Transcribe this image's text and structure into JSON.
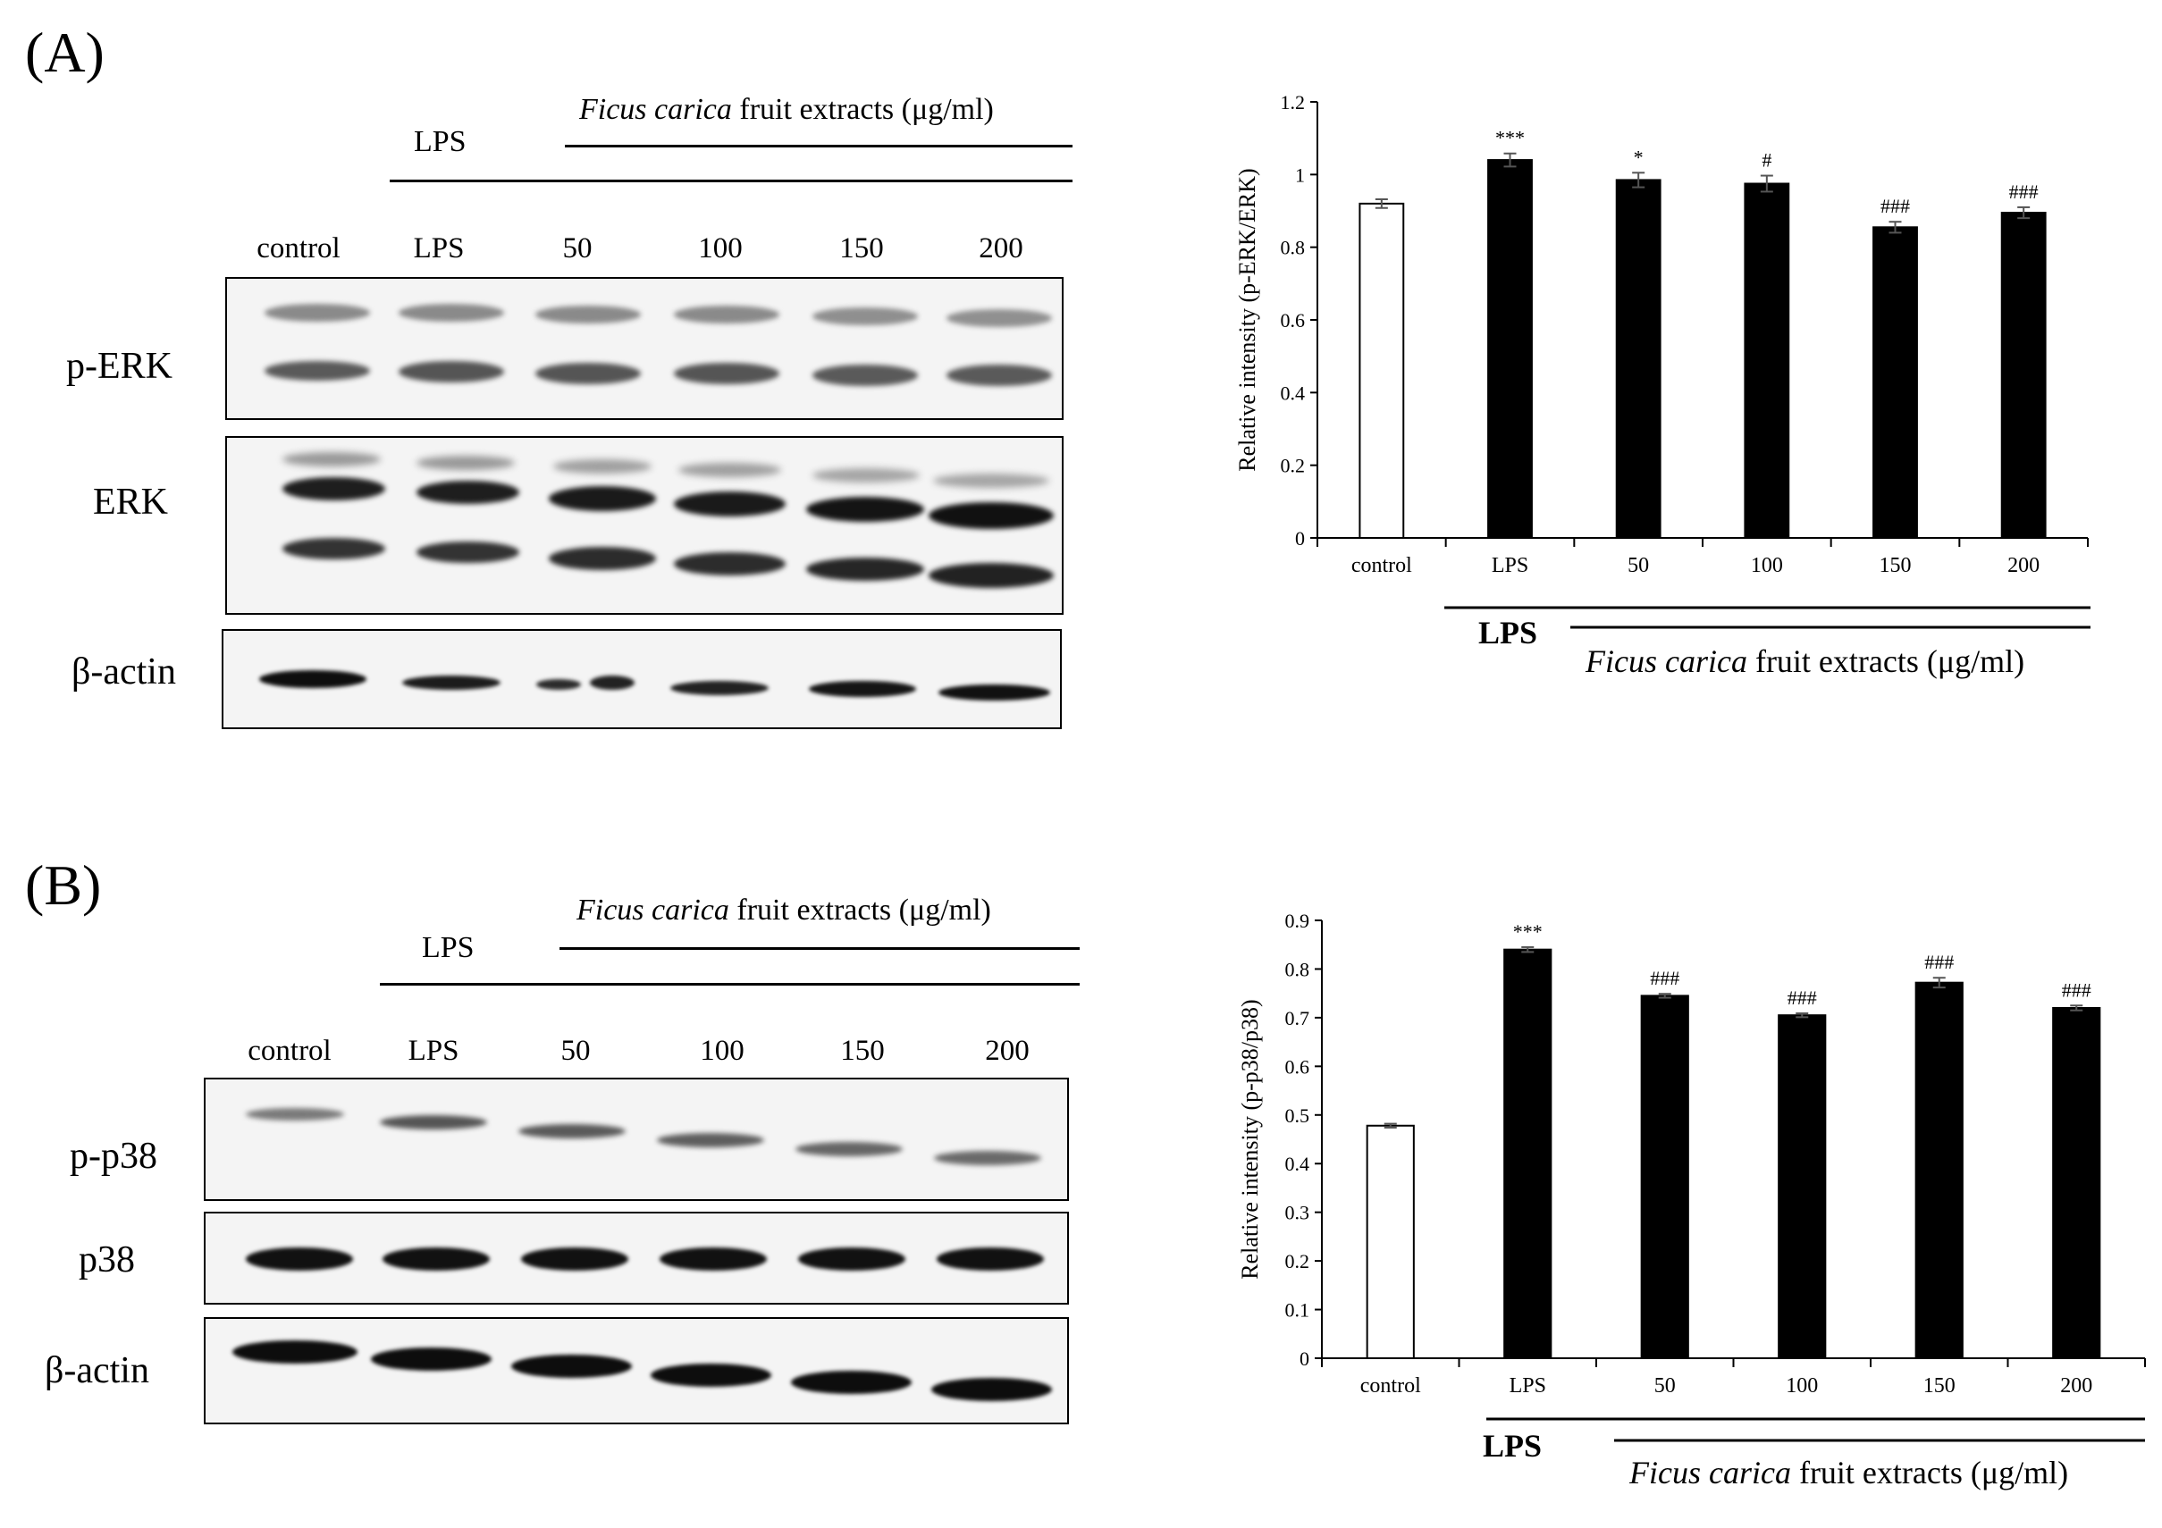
{
  "panel_a": {
    "letter": "(A)",
    "header": {
      "lps": "LPS",
      "extract_italic": "Ficus carica",
      "extract_rest": " fruit extracts (μg/ml)"
    },
    "lanes": [
      "control",
      "LPS",
      "50",
      "100",
      "150",
      "200"
    ],
    "blots": [
      "p-ERK",
      "ERK",
      "β-actin"
    ]
  },
  "panel_b": {
    "letter": "(B)",
    "header": {
      "lps": "LPS",
      "extract_italic": "Ficus carica",
      "extract_rest": " fruit extracts (μg/ml)"
    },
    "lanes": [
      "control",
      "LPS",
      "50",
      "100",
      "150",
      "200"
    ],
    "blots": [
      "p-p38",
      "p38",
      "β-actin"
    ]
  },
  "chart_data": [
    {
      "type": "bar",
      "categories": [
        "control",
        "LPS",
        "50",
        "100",
        "150",
        "200"
      ],
      "values": [
        0.92,
        1.04,
        0.985,
        0.975,
        0.855,
        0.895
      ],
      "errors": [
        0.012,
        0.018,
        0.02,
        0.022,
        0.015,
        0.015
      ],
      "annotations": [
        "",
        "***",
        "*",
        "#",
        "###",
        "###"
      ],
      "fills": [
        "#ffffff",
        "#000000",
        "#000000",
        "#000000",
        "#000000",
        "#000000"
      ],
      "ylabel": "Relative intensity (p-ERK/ERK)",
      "ylim": [
        0,
        1.2
      ],
      "yticks": [
        "0",
        "0.2",
        "0.4",
        "0.6",
        "0.8",
        "1",
        "1.2"
      ],
      "group_labels": {
        "lps": "LPS",
        "extract_italic": "Ficus carica",
        "extract_rest": " fruit extracts (μg/ml)"
      }
    },
    {
      "type": "bar",
      "categories": [
        "control",
        "LPS",
        "50",
        "100",
        "150",
        "200"
      ],
      "values": [
        0.478,
        0.84,
        0.745,
        0.705,
        0.772,
        0.72
      ],
      "errors": [
        0.004,
        0.005,
        0.004,
        0.004,
        0.01,
        0.005
      ],
      "annotations": [
        "",
        "***",
        "###",
        "###",
        "###",
        "###"
      ],
      "fills": [
        "#ffffff",
        "#000000",
        "#000000",
        "#000000",
        "#000000",
        "#000000"
      ],
      "ylabel": "Relative intensity (p-p38/p38)",
      "ylim": [
        0,
        0.9
      ],
      "yticks": [
        "0",
        "0.1",
        "0.2",
        "0.3",
        "0.4",
        "0.5",
        "0.6",
        "0.7",
        "0.8",
        "0.9"
      ],
      "group_labels": {
        "lps": "LPS",
        "extract_italic": "Ficus carica",
        "extract_rest": " fruit extracts (μg/ml)"
      }
    }
  ]
}
